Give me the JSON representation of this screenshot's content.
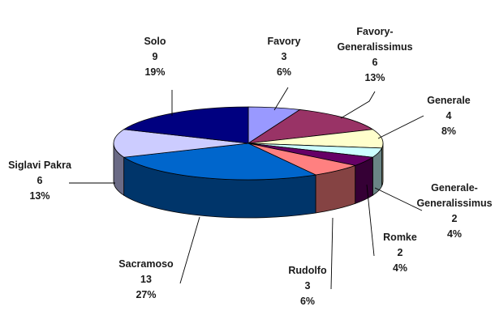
{
  "chart_data": {
    "type": "pie",
    "title": "",
    "categories": [
      "Favory",
      "Favory-Generalissimus",
      "Generale",
      "Generale-Generalissimus",
      "Romke",
      "Rudolfo",
      "Sacramoso",
      "Siglavi Pakra",
      "Solo"
    ],
    "values": [
      3,
      6,
      4,
      2,
      2,
      3,
      13,
      6,
      9
    ],
    "percent_labels": [
      "6%",
      "13%",
      "8%",
      "4%",
      "4%",
      "6%",
      "27%",
      "13%",
      "19%"
    ],
    "slices": [
      {
        "name": "Favory",
        "label_lines": [
          "Favory"
        ],
        "value": 3,
        "percent": "6%",
        "color": "#9999ff"
      },
      {
        "name": "Favory-Generalissimus",
        "label_lines": [
          "Favory-",
          "Generalissimus"
        ],
        "value": 6,
        "percent": "13%",
        "color": "#993366"
      },
      {
        "name": "Generale",
        "label_lines": [
          "Generale"
        ],
        "value": 4,
        "percent": "8%",
        "color": "#ffffcc"
      },
      {
        "name": "Generale-Generalissimus",
        "label_lines": [
          "Generale-",
          "Generalissimus"
        ],
        "value": 2,
        "percent": "4%",
        "color": "#ccffff"
      },
      {
        "name": "Romke",
        "label_lines": [
          "Romke"
        ],
        "value": 2,
        "percent": "4%",
        "color": "#660066"
      },
      {
        "name": "Rudolfo",
        "label_lines": [
          "Rudolfo"
        ],
        "value": 3,
        "percent": "6%",
        "color": "#ff8080"
      },
      {
        "name": "Sacramoso",
        "label_lines": [
          "Sacramoso"
        ],
        "value": 13,
        "percent": "27%",
        "color": "#0066cc"
      },
      {
        "name": "Siglavi Pakra",
        "label_lines": [
          "Siglavi Pakra"
        ],
        "value": 6,
        "percent": "13%",
        "color": "#ccccff"
      },
      {
        "name": "Solo",
        "label_lines": [
          "Solo"
        ],
        "value": 9,
        "percent": "19%",
        "color": "#000080"
      }
    ],
    "style": "3d-pie",
    "legend": "none"
  }
}
